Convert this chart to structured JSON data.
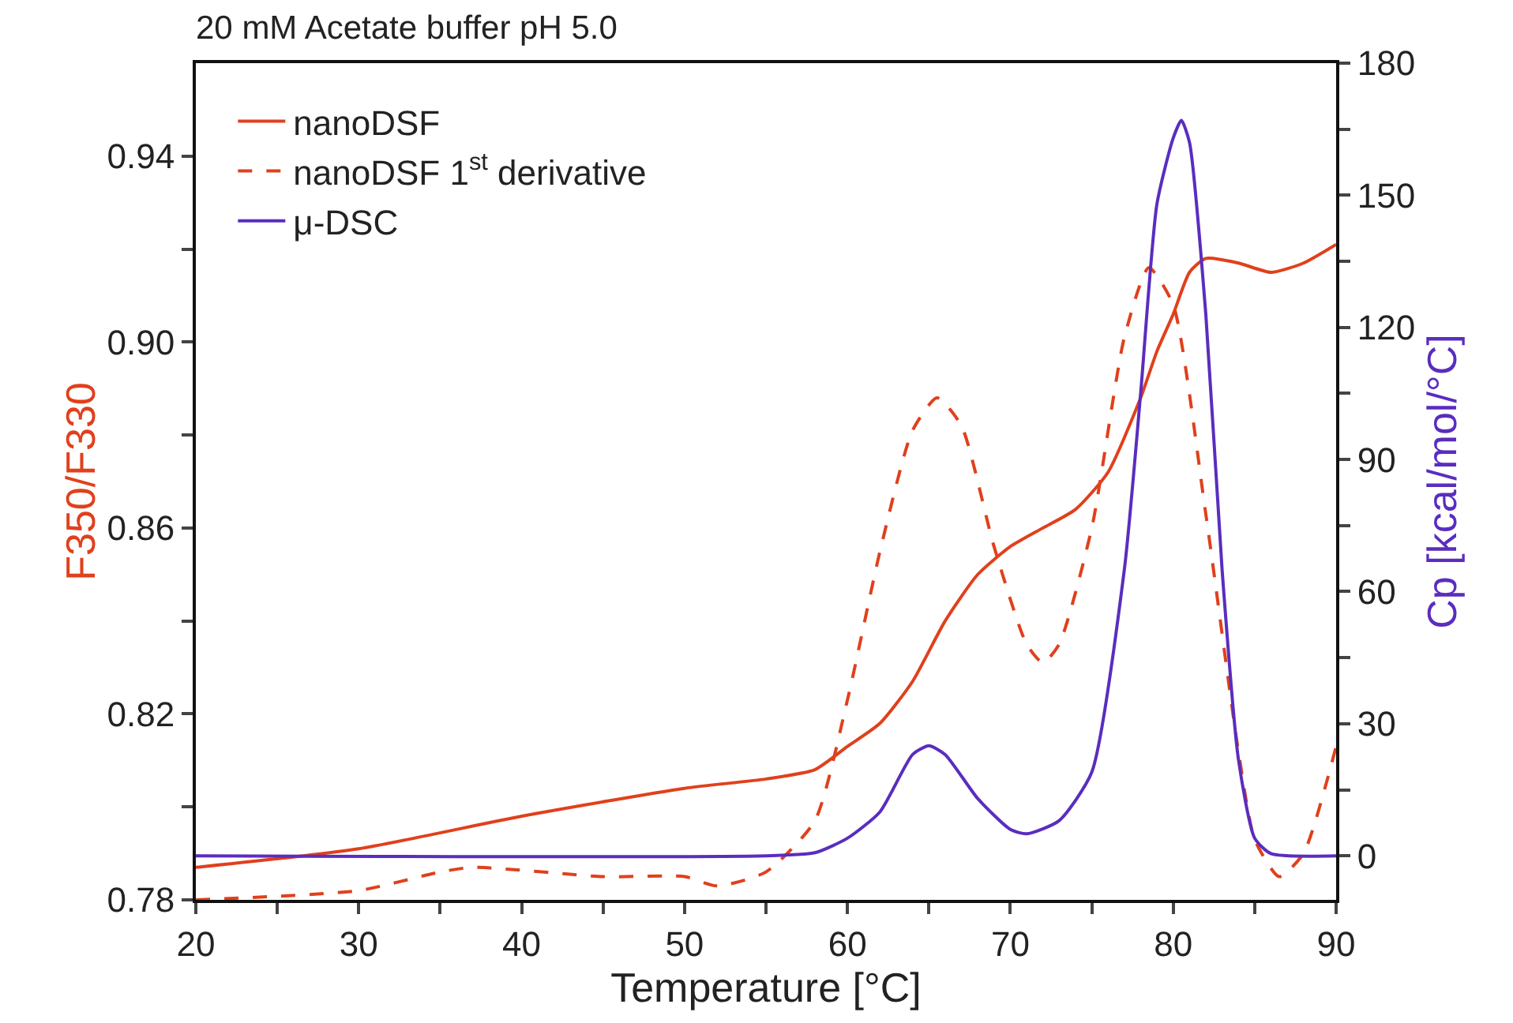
{
  "chart_data": {
    "type": "line",
    "title": "20 mM Acetate buffer pH 5.0",
    "xlabel": "Temperature [°C]",
    "ylabel": "F350/F330",
    "y2label": "Cp [kcal/mol/°C]",
    "xlim": [
      20,
      90
    ],
    "xticks": [
      20,
      {
        "value": 25,
        "label": null
      },
      30,
      {
        "value": 35,
        "label": null
      },
      40,
      {
        "value": 45,
        "label": null
      },
      50,
      {
        "value": 55,
        "label": null
      },
      60,
      {
        "value": 65,
        "label": null
      },
      70,
      {
        "value": 75,
        "label": null
      },
      80,
      {
        "value": 85,
        "label": null
      },
      90
    ],
    "ylim": [
      0.78,
      0.96
    ],
    "yticks": [
      0.78,
      {
        "value": 0.8,
        "label": null
      },
      0.82,
      {
        "value": 0.84,
        "label": null
      },
      0.86,
      {
        "value": 0.88,
        "label": null
      },
      {
        "value": 0.9,
        "label": "0.90"
      },
      {
        "value": 0.92,
        "label": null
      },
      0.94
    ],
    "y2lim": [
      -10,
      180
    ],
    "y2ticks": [
      0,
      {
        "value": 15,
        "label": null
      },
      30,
      {
        "value": 45,
        "label": null
      },
      60,
      {
        "value": 75,
        "label": null
      },
      90,
      {
        "value": 105,
        "label": null
      },
      120,
      {
        "value": 135,
        "label": null
      },
      150,
      {
        "value": 165,
        "label": null
      },
      180
    ],
    "legend": "top left",
    "grid": false,
    "marker": "none",
    "series": [
      {
        "name": "nanoDSF",
        "color": "#e0401c",
        "line_style": "solid",
        "x": [
          20,
          30,
          40,
          50,
          55,
          58,
          60,
          62,
          64,
          66,
          68,
          70,
          72,
          74,
          76,
          78,
          79,
          80,
          81,
          82,
          84,
          86,
          88,
          90
        ],
        "values": [
          0.787,
          0.791,
          0.798,
          0.804,
          0.806,
          0.808,
          0.813,
          0.818,
          0.827,
          0.84,
          0.85,
          0.856,
          0.86,
          0.864,
          0.872,
          0.888,
          0.898,
          0.906,
          0.915,
          0.918,
          0.917,
          0.915,
          0.917,
          0.921
        ]
      },
      {
        "name": "nanoDSF 1$^{st}$ derivative",
        "color": "#e0401c",
        "line_style": "dashed",
        "x": [
          20,
          30,
          35,
          37,
          45,
          50,
          52,
          55,
          58,
          60,
          62,
          64,
          65.5,
          67,
          69,
          71,
          72,
          73,
          75,
          77,
          78.5,
          80,
          82,
          84,
          85,
          86.5,
          88,
          90
        ],
        "values": [
          0.78,
          0.782,
          0.786,
          0.787,
          0.785,
          0.785,
          0.783,
          0.786,
          0.797,
          0.823,
          0.855,
          0.881,
          0.888,
          0.882,
          0.856,
          0.835,
          0.831,
          0.835,
          0.86,
          0.901,
          0.916,
          0.908,
          0.863,
          0.812,
          0.793,
          0.785,
          0.79,
          0.813
        ]
      },
      {
        "name": "μ-DSC",
        "color": "#5a2dbf",
        "line_style": "solid",
        "axis": "y2",
        "x": [
          20,
          55,
          58,
          60,
          62,
          64,
          65,
          66,
          68,
          70,
          71,
          73,
          75,
          77,
          78,
          79,
          80,
          80.5,
          81,
          82,
          83,
          84,
          85,
          86,
          90
        ],
        "values": [
          0,
          0,
          0.7,
          4,
          10,
          23,
          25,
          23,
          13,
          6,
          5,
          8,
          19,
          65,
          105,
          148,
          163,
          167,
          162,
          123,
          65,
          22,
          4,
          0.5,
          0
        ]
      }
    ]
  }
}
